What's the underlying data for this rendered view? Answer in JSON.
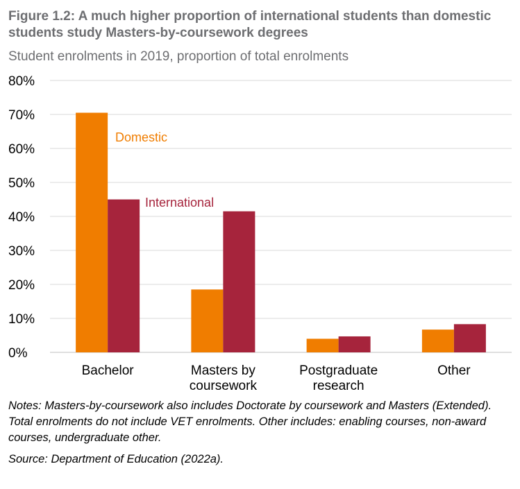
{
  "title": "Figure 1.2: A much higher proportion of international students than domestic students study Masters-by-coursework degrees",
  "subtitle": "Student enrolments in 2019, proportion of total enrolments",
  "chart_data": {
    "type": "bar",
    "categories": [
      [
        "Bachelor"
      ],
      [
        "Masters by",
        "coursework"
      ],
      [
        "Postgraduate",
        "research"
      ],
      [
        "Other"
      ]
    ],
    "series": [
      {
        "name": "Domestic",
        "color": "#f07d00",
        "values": [
          70.5,
          18.5,
          4,
          6.7
        ]
      },
      {
        "name": "International",
        "color": "#a6243c",
        "values": [
          45,
          41.5,
          4.7,
          8.3
        ]
      }
    ],
    "ylim": [
      0,
      80
    ],
    "yticks": [
      0,
      10,
      20,
      30,
      40,
      50,
      60,
      70,
      80
    ],
    "ytick_labels": [
      "0%",
      "10%",
      "20%",
      "30%",
      "40%",
      "50%",
      "60%",
      "70%",
      "80%"
    ],
    "grid": true,
    "grid_color": "#d9d9d9",
    "xlabel": "",
    "ylabel": ""
  },
  "notes": "Notes: Masters-by-coursework also includes Doctorate by coursework and Masters (Extended). Total enrolments do not include VET enrolments. Other includes: enabling courses, non-award courses, undergraduate other.",
  "source": "Source: Department of Education (2022a)."
}
